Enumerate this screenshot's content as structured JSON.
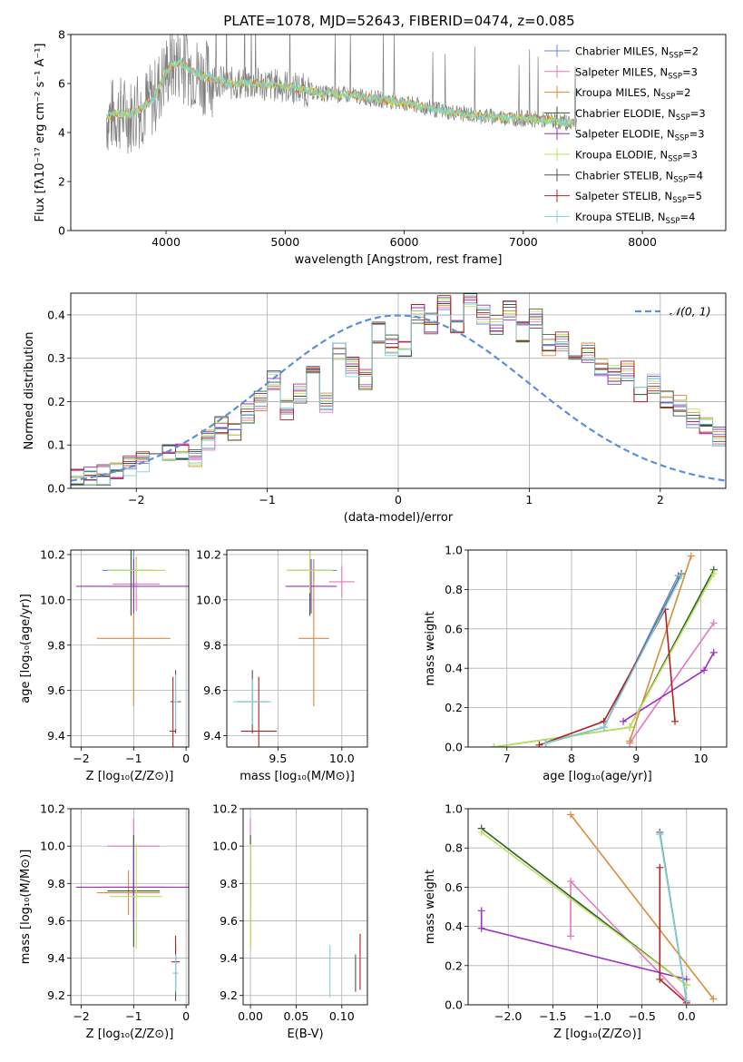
{
  "figure_title": "PLATE=1078, MJD=52643, FIBERID=0474, z=0.085",
  "colors": {
    "chabrier_miles": "#6a8bd6",
    "salpeter_miles": "#e377c2",
    "kroupa_miles": "#d98c3a",
    "chabrier_elodie": "#2a5f2a",
    "salpeter_elodie": "#9b30c0",
    "kroupa_elodie": "#bde35a",
    "chabrier_stelib": "#555555",
    "salpeter_stelib": "#b22222",
    "kroupa_stelib": "#7fd0d6",
    "normal": "#5b8fd9",
    "data": "#808080",
    "model_orange": "#e8772e"
  },
  "legend_spectrum": [
    {
      "key": "chabrier_miles",
      "label": "Chabrier MILES, N",
      "sub": "SSP",
      "n": "=2"
    },
    {
      "key": "salpeter_miles",
      "label": "Salpeter MILES, N",
      "sub": "SSP",
      "n": "=3"
    },
    {
      "key": "kroupa_miles",
      "label": "Kroupa MILES, N",
      "sub": "SSP",
      "n": "=2"
    },
    {
      "key": "chabrier_elodie",
      "label": "Chabrier ELODIE, N",
      "sub": "SSP",
      "n": "=3"
    },
    {
      "key": "salpeter_elodie",
      "label": "Salpeter ELODIE, N",
      "sub": "SSP",
      "n": "=3"
    },
    {
      "key": "kroupa_elodie",
      "label": "Kroupa ELODIE, N",
      "sub": "SSP",
      "n": "=3"
    },
    {
      "key": "chabrier_stelib",
      "label": "Chabrier STELIB, N",
      "sub": "SSP",
      "n": "=4"
    },
    {
      "key": "salpeter_stelib",
      "label": "Salpeter STELIB, N",
      "sub": "SSP",
      "n": "=5"
    },
    {
      "key": "kroupa_stelib",
      "label": "Kroupa STELIB, N",
      "sub": "SSP",
      "n": "=4"
    }
  ],
  "chart_data": [
    {
      "id": "spectrum",
      "type": "line",
      "title": "PLATE=1078, MJD=52643, FIBERID=0474, z=0.085",
      "xlabel": "wavelength [Angstrom, rest frame]",
      "ylabel": "Flux [fλ10⁻¹⁷ erg cm⁻² s⁻¹ A⁻¹]",
      "xlim": [
        3200,
        8700
      ],
      "ylim": [
        0,
        8
      ],
      "xticks": [
        4000,
        5000,
        6000,
        7000,
        8000
      ],
      "yticks": [
        0,
        2,
        4,
        6,
        8
      ],
      "grid": false,
      "legend": "upper-right",
      "model_curve": {
        "x": [
          3500,
          3600,
          3700,
          3800,
          3900,
          4000,
          4100,
          4200,
          4300,
          4400,
          4500,
          4700,
          5000,
          5300,
          5600,
          6000,
          6300,
          6600,
          6900,
          7200,
          7400
        ],
        "y": [
          4.6,
          4.8,
          4.7,
          5.0,
          5.4,
          6.5,
          6.9,
          6.6,
          6.3,
          6.2,
          6.0,
          6.0,
          5.9,
          5.6,
          5.5,
          5.2,
          4.9,
          4.7,
          4.6,
          4.5,
          4.4
        ]
      }
    },
    {
      "id": "residuals",
      "type": "line",
      "xlabel": "(data-model)/error",
      "ylabel": "Normed distribution",
      "xlim": [
        -2.5,
        2.5
      ],
      "ylim": [
        0,
        0.45
      ],
      "xticks": [
        -2,
        -1,
        0,
        1,
        2
      ],
      "yticks": [
        0.0,
        0.1,
        0.2,
        0.3,
        0.4
      ],
      "grid": true,
      "legend": "upper-right",
      "normal_label": "𝒩(0, 1)",
      "series_hist": {
        "bin_width": 0.1,
        "x_start": -2.5,
        "values": [
          0.02,
          0.025,
          0.03,
          0.045,
          0.05,
          0.06,
          0.065,
          0.08,
          0.09,
          0.07,
          0.11,
          0.15,
          0.13,
          0.17,
          0.2,
          0.25,
          0.18,
          0.22,
          0.26,
          0.2,
          0.32,
          0.28,
          0.25,
          0.36,
          0.33,
          0.32,
          0.4,
          0.38,
          0.42,
          0.37,
          0.44,
          0.4,
          0.38,
          0.41,
          0.36,
          0.39,
          0.33,
          0.34,
          0.3,
          0.31,
          0.28,
          0.26,
          0.27,
          0.22,
          0.24,
          0.2,
          0.19,
          0.16,
          0.15,
          0.12
        ]
      }
    },
    {
      "id": "age_vs_Z",
      "type": "scatter",
      "xlabel": "Z [log₁₀(Z/Z⊙)]",
      "ylabel": "age  [log₁₀(age/yr)]",
      "xlim": [
        -2.2,
        0.05
      ],
      "ylim": [
        9.35,
        10.22
      ],
      "xticks": [
        -2,
        -1,
        0
      ],
      "yticks": [
        9.4,
        9.6,
        9.8,
        10.0,
        10.2
      ],
      "grid": true,
      "points": [
        {
          "key": "chabrier_miles",
          "x": -1.0,
          "y": 10.13,
          "xerr": 0.6,
          "yerr": 0.1
        },
        {
          "key": "salpeter_miles",
          "x": -0.95,
          "y": 10.07,
          "xerr": 0.45,
          "yerr": 0.12
        },
        {
          "key": "kroupa_miles",
          "x": -1.0,
          "y": 9.83,
          "xerr": 0.7,
          "yerr": 0.3
        },
        {
          "key": "chabrier_elodie",
          "x": -1.05,
          "y": 10.13,
          "xerr": 0.45,
          "yerr": 0.2
        },
        {
          "key": "salpeter_elodie",
          "x": -1.0,
          "y": 10.06,
          "xerr": 1.1,
          "yerr": 0.12
        },
        {
          "key": "kroupa_elodie",
          "x": -0.95,
          "y": 10.13,
          "xerr": 0.55,
          "yerr": 0.05
        },
        {
          "key": "chabrier_stelib",
          "x": -0.2,
          "y": 9.55,
          "xerr": 0.1,
          "yerr": 0.14
        },
        {
          "key": "salpeter_stelib",
          "x": -0.25,
          "y": 9.42,
          "xerr": 0.06,
          "yerr": 0.24
        },
        {
          "key": "kroupa_stelib",
          "x": -0.2,
          "y": 9.55,
          "xerr": 0.05,
          "yerr": 0.12
        }
      ]
    },
    {
      "id": "age_vs_mass",
      "type": "scatter",
      "xlabel": "mass [log₁₀(M/M⊙)]",
      "ylabel": "",
      "xlim": [
        9.1,
        10.2
      ],
      "ylim": [
        9.35,
        10.22
      ],
      "xticks": [
        9.5,
        10.0
      ],
      "yticks": [
        9.4,
        9.6,
        9.8,
        10.0,
        10.2
      ],
      "grid": true,
      "points": [
        {
          "key": "chabrier_miles",
          "x": 9.78,
          "y": 10.13,
          "xerr": 0.18,
          "yerr": 0.05
        },
        {
          "key": "salpeter_miles",
          "x": 10.0,
          "y": 10.08,
          "xerr": 0.1,
          "yerr": 0.07
        },
        {
          "key": "kroupa_miles",
          "x": 9.78,
          "y": 9.83,
          "xerr": 0.12,
          "yerr": 0.3
        },
        {
          "key": "chabrier_elodie",
          "x": 9.75,
          "y": 10.13,
          "xerr": 0.18,
          "yerr": 0.2
        },
        {
          "key": "salpeter_elodie",
          "x": 9.76,
          "y": 10.06,
          "xerr": 0.2,
          "yerr": 0.12
        },
        {
          "key": "kroupa_elodie",
          "x": 9.75,
          "y": 10.13,
          "xerr": 0.18,
          "yerr": 0.1
        },
        {
          "key": "chabrier_stelib",
          "x": 9.3,
          "y": 9.55,
          "xerr": 0.12,
          "yerr": 0.14
        },
        {
          "key": "salpeter_stelib",
          "x": 9.35,
          "y": 9.42,
          "xerr": 0.14,
          "yerr": 0.24
        },
        {
          "key": "kroupa_stelib",
          "x": 9.3,
          "y": 9.55,
          "xerr": 0.15,
          "yerr": 0.1
        }
      ]
    },
    {
      "id": "massweight_vs_age",
      "type": "line",
      "xlabel": "age  [log₁₀(age/yr)]",
      "ylabel": "mass weight",
      "xlim": [
        6.4,
        10.4
      ],
      "ylim": [
        0,
        1.0
      ],
      "xticks": [
        7,
        8,
        9,
        10
      ],
      "yticks": [
        0.0,
        0.2,
        0.4,
        0.6,
        0.8,
        1.0
      ],
      "grid": true,
      "series": [
        {
          "key": "chabrier_miles",
          "x": [
            7.6,
            8.5,
            9.65
          ],
          "y": [
            0.02,
            0.1,
            0.87
          ]
        },
        {
          "key": "salpeter_miles",
          "x": [
            8.9,
            10.2
          ],
          "y": [
            0.02,
            0.63
          ]
        },
        {
          "key": "kroupa_miles",
          "x": [
            8.9,
            9.85
          ],
          "y": [
            0.03,
            0.97
          ]
        },
        {
          "key": "chabrier_elodie",
          "x": [
            6.8,
            8.9,
            10.2
          ],
          "y": [
            0.0,
            0.1,
            0.9
          ]
        },
        {
          "key": "salpeter_elodie",
          "x": [
            8.8,
            10.05,
            10.2
          ],
          "y": [
            0.13,
            0.39,
            0.48
          ]
        },
        {
          "key": "kroupa_elodie",
          "x": [
            6.8,
            8.9,
            10.2
          ],
          "y": [
            0.0,
            0.1,
            0.88
          ]
        },
        {
          "key": "chabrier_stelib",
          "x": [
            7.6,
            8.5,
            9.7
          ],
          "y": [
            0.02,
            0.1,
            0.88
          ]
        },
        {
          "key": "salpeter_stelib",
          "x": [
            7.5,
            8.5,
            9.45,
            9.6
          ],
          "y": [
            0.01,
            0.13,
            0.7,
            0.13
          ]
        },
        {
          "key": "kroupa_stelib",
          "x": [
            7.6,
            8.5,
            9.7
          ],
          "y": [
            0.02,
            0.1,
            0.87
          ]
        }
      ]
    },
    {
      "id": "mass_vs_Z",
      "type": "scatter",
      "xlabel": "Z [log₁₀(Z/Z⊙)]",
      "ylabel": "mass [log₁₀(M/M⊙)]",
      "xlim": [
        -2.2,
        0.05
      ],
      "ylim": [
        9.15,
        10.2
      ],
      "xticks": [
        -2,
        -1,
        0
      ],
      "yticks": [
        9.2,
        9.4,
        9.6,
        9.8,
        10.0,
        10.2
      ],
      "grid": true,
      "points": [
        {
          "key": "chabrier_miles",
          "x": -1.0,
          "y": 9.78,
          "xerr": 0.6,
          "yerr": 0.1
        },
        {
          "key": "salpeter_miles",
          "x": -1.0,
          "y": 10.0,
          "xerr": 0.5,
          "yerr": 0.15
        },
        {
          "key": "kroupa_miles",
          "x": -1.1,
          "y": 9.75,
          "xerr": 0.6,
          "yerr": 0.12
        },
        {
          "key": "chabrier_elodie",
          "x": -1.0,
          "y": 9.76,
          "xerr": 0.5,
          "yerr": 0.3
        },
        {
          "key": "salpeter_elodie",
          "x": -1.0,
          "y": 9.78,
          "xerr": 1.1,
          "yerr": 0.2
        },
        {
          "key": "kroupa_elodie",
          "x": -0.95,
          "y": 9.73,
          "xerr": 0.5,
          "yerr": 0.28
        },
        {
          "key": "chabrier_stelib",
          "x": -0.2,
          "y": 9.32,
          "xerr": 0.05,
          "yerr": 0.15
        },
        {
          "key": "salpeter_stelib",
          "x": -0.2,
          "y": 9.38,
          "xerr": 0.08,
          "yerr": 0.14
        },
        {
          "key": "kroupa_stelib",
          "x": -0.2,
          "y": 9.32,
          "xerr": 0.05,
          "yerr": 0.1
        }
      ]
    },
    {
      "id": "mass_vs_EBV",
      "type": "scatter",
      "xlabel": "E(B-V)",
      "ylabel": "",
      "xlim": [
        -0.008,
        0.128
      ],
      "ylim": [
        9.15,
        10.2
      ],
      "xticks": [
        0.0,
        0.05,
        0.1
      ],
      "yticks": [
        9.2,
        9.4,
        9.6,
        9.8,
        10.0,
        10.2
      ],
      "grid": true,
      "points": [
        {
          "key": "chabrier_miles",
          "x": 0.0,
          "y": 9.78,
          "xerr": 0.0,
          "yerr": 0.1
        },
        {
          "key": "salpeter_miles",
          "x": 0.0,
          "y": 10.0,
          "xerr": 0.0,
          "yerr": 0.15
        },
        {
          "key": "kroupa_miles",
          "x": 0.0,
          "y": 9.75,
          "xerr": 0.0,
          "yerr": 0.3
        },
        {
          "key": "chabrier_elodie",
          "x": 0.0,
          "y": 9.76,
          "xerr": 0.0,
          "yerr": 0.3
        },
        {
          "key": "salpeter_elodie",
          "x": 0.0,
          "y": 9.78,
          "xerr": 0.0,
          "yerr": 0.2
        },
        {
          "key": "kroupa_elodie",
          "x": 0.0,
          "y": 9.73,
          "xerr": 0.0,
          "yerr": 0.28
        },
        {
          "key": "chabrier_stelib",
          "x": 0.115,
          "y": 9.32,
          "xerr": 0.0,
          "yerr": 0.1
        },
        {
          "key": "salpeter_stelib",
          "x": 0.12,
          "y": 9.38,
          "xerr": 0.0,
          "yerr": 0.15
        },
        {
          "key": "kroupa_stelib",
          "x": 0.087,
          "y": 9.33,
          "xerr": 0.0,
          "yerr": 0.14
        }
      ]
    },
    {
      "id": "massweight_vs_Z",
      "type": "line",
      "xlabel": "Z [log₁₀(Z/Z⊙)]",
      "ylabel": "mass weight",
      "xlim": [
        -2.45,
        0.45
      ],
      "ylim": [
        0,
        1.0
      ],
      "xticks": [
        -2.0,
        -1.5,
        -1.0,
        -0.5,
        0.0
      ],
      "yticks": [
        0.0,
        0.2,
        0.4,
        0.6,
        0.8,
        1.0
      ],
      "grid": true,
      "series": [
        {
          "key": "chabrier_miles",
          "x": [
            -0.3,
            0.0
          ],
          "y": [
            0.87,
            0.02
          ]
        },
        {
          "key": "salpeter_miles",
          "x": [
            -1.3,
            -1.3,
            0.0
          ],
          "y": [
            0.35,
            0.63,
            0.02
          ]
        },
        {
          "key": "kroupa_miles",
          "x": [
            -1.3,
            0.3
          ],
          "y": [
            0.97,
            0.03
          ]
        },
        {
          "key": "chabrier_elodie",
          "x": [
            -2.3,
            0.0
          ],
          "y": [
            0.9,
            0.1
          ]
        },
        {
          "key": "salpeter_elodie",
          "x": [
            -2.3,
            -2.3,
            0.0
          ],
          "y": [
            0.48,
            0.39,
            0.13
          ]
        },
        {
          "key": "kroupa_elodie",
          "x": [
            -2.3,
            0.0
          ],
          "y": [
            0.88,
            0.1
          ]
        },
        {
          "key": "chabrier_stelib",
          "x": [
            -0.3,
            0.0
          ],
          "y": [
            0.88,
            0.02
          ]
        },
        {
          "key": "salpeter_stelib",
          "x": [
            -0.3,
            -0.3,
            0.0
          ],
          "y": [
            0.7,
            0.13,
            0.01
          ]
        },
        {
          "key": "kroupa_stelib",
          "x": [
            -0.3,
            0.0
          ],
          "y": [
            0.87,
            0.02
          ]
        }
      ]
    }
  ]
}
